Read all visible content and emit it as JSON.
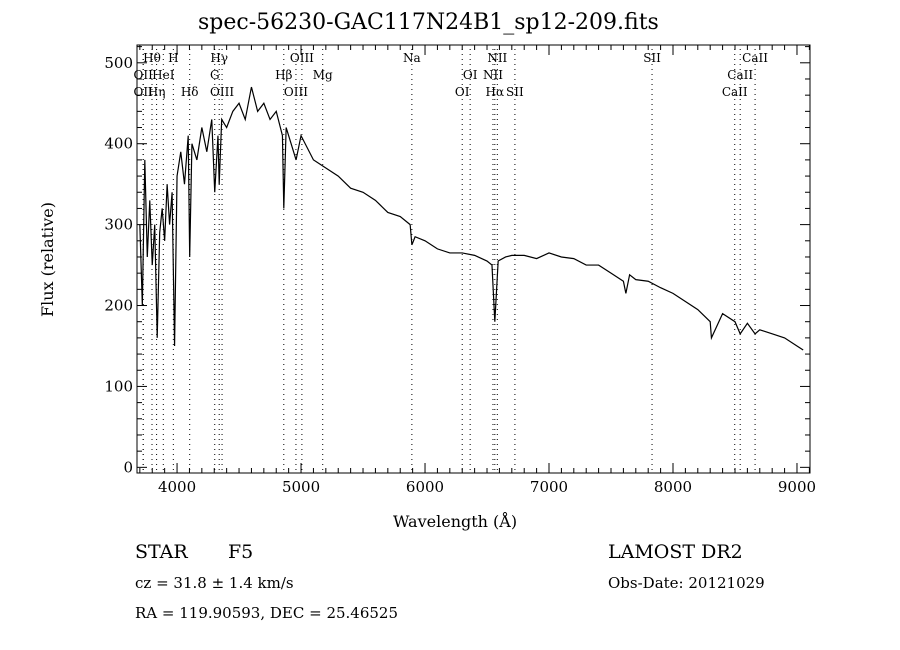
{
  "chart_data": {
    "type": "line",
    "title": "spec-56230-GAC117N24B1_sp12-209.fits",
    "xlabel": "Wavelength (Å)",
    "ylabel": "Flux (relative)",
    "xlim": [
      3677,
      9105
    ],
    "ylim": [
      -7,
      522
    ],
    "xticks": [
      4000,
      5000,
      6000,
      7000,
      8000,
      9000
    ],
    "yticks": [
      0,
      100,
      200,
      300,
      400,
      500
    ],
    "grid": false,
    "series": [
      {
        "name": "spectrum",
        "x": [
          3700,
          3720,
          3740,
          3760,
          3780,
          3800,
          3820,
          3840,
          3860,
          3880,
          3900,
          3920,
          3940,
          3960,
          3980,
          4000,
          4030,
          4060,
          4090,
          4102,
          4120,
          4160,
          4200,
          4240,
          4280,
          4304,
          4330,
          4340,
          4360,
          4400,
          4450,
          4500,
          4550,
          4600,
          4650,
          4700,
          4750,
          4800,
          4850,
          4861,
          4880,
          4920,
          4960,
          5000,
          5100,
          5200,
          5300,
          5400,
          5500,
          5600,
          5700,
          5800,
          5880,
          5894,
          5920,
          6000,
          6100,
          6200,
          6300,
          6400,
          6500,
          6540,
          6563,
          6590,
          6650,
          6700,
          6800,
          6900,
          7000,
          7100,
          7200,
          7300,
          7400,
          7500,
          7600,
          7620,
          7650,
          7700,
          7800,
          7900,
          8000,
          8100,
          8200,
          8300,
          8310,
          8400,
          8500,
          8542,
          8600,
          8662,
          8700,
          8800,
          8900,
          9000,
          9050
        ],
        "y": [
          300,
          200,
          380,
          260,
          330,
          250,
          300,
          160,
          290,
          320,
          280,
          350,
          300,
          340,
          150,
          360,
          390,
          350,
          410,
          260,
          400,
          380,
          420,
          390,
          430,
          340,
          410,
          350,
          430,
          420,
          440,
          450,
          430,
          470,
          440,
          450,
          430,
          440,
          410,
          320,
          420,
          400,
          380,
          410,
          380,
          370,
          360,
          345,
          340,
          330,
          315,
          310,
          300,
          275,
          285,
          280,
          270,
          265,
          265,
          262,
          255,
          250,
          180,
          255,
          260,
          262,
          262,
          258,
          265,
          260,
          258,
          250,
          250,
          240,
          230,
          215,
          238,
          232,
          230,
          222,
          215,
          205,
          195,
          180,
          160,
          190,
          180,
          165,
          178,
          165,
          170,
          165,
          160,
          150,
          145
        ]
      }
    ],
    "lines": [
      {
        "label": "Hθ",
        "wl": 3798,
        "row": 1
      },
      {
        "label": "H",
        "wl": 3970,
        "row": 1
      },
      {
        "label": "Hγ",
        "wl": 4340,
        "row": 1
      },
      {
        "label": "OIII",
        "wl": 5007,
        "row": 1
      },
      {
        "label": "Na",
        "wl": 5894,
        "row": 1
      },
      {
        "label": "NII",
        "wl": 6583,
        "row": 1
      },
      {
        "label": "SII",
        "wl": 7831,
        "row": 1
      },
      {
        "label": "CaII",
        "wl": 8662,
        "row": 1
      },
      {
        "label": "OII",
        "wl": 3727,
        "row": 2
      },
      {
        "label": "HeI",
        "wl": 3889,
        "row": 2
      },
      {
        "label": "G",
        "wl": 4304,
        "row": 2
      },
      {
        "label": "Hβ",
        "wl": 4861,
        "row": 2
      },
      {
        "label": "Mg",
        "wl": 5175,
        "row": 2
      },
      {
        "label": "OI",
        "wl": 6364,
        "row": 2
      },
      {
        "label": "NII",
        "wl": 6548,
        "row": 2
      },
      {
        "label": "CaII",
        "wl": 8542,
        "row": 2
      },
      {
        "label": "OII",
        "wl": 3727,
        "row": 3
      },
      {
        "label": "Hη",
        "wl": 3835,
        "row": 3
      },
      {
        "label": "Hδ",
        "wl": 4102,
        "row": 3
      },
      {
        "label": "OIII",
        "wl": 4363,
        "row": 3
      },
      {
        "label": "OIII",
        "wl": 4959,
        "row": 3
      },
      {
        "label": "OI",
        "wl": 6300,
        "row": 3
      },
      {
        "label": "Hα",
        "wl": 6563,
        "row": 3
      },
      {
        "label": "SII",
        "wl": 6725,
        "row": 3
      },
      {
        "label": "CaII",
        "wl": 8498,
        "row": 3
      }
    ]
  },
  "info": {
    "class": "STAR",
    "subclass": "F5",
    "survey": "LAMOST DR2",
    "cz": "cz = 31.8 ± 1.4 km/s",
    "obsdate": "Obs-Date: 20121029",
    "coords": "RA = 119.90593, DEC =  25.46525"
  }
}
